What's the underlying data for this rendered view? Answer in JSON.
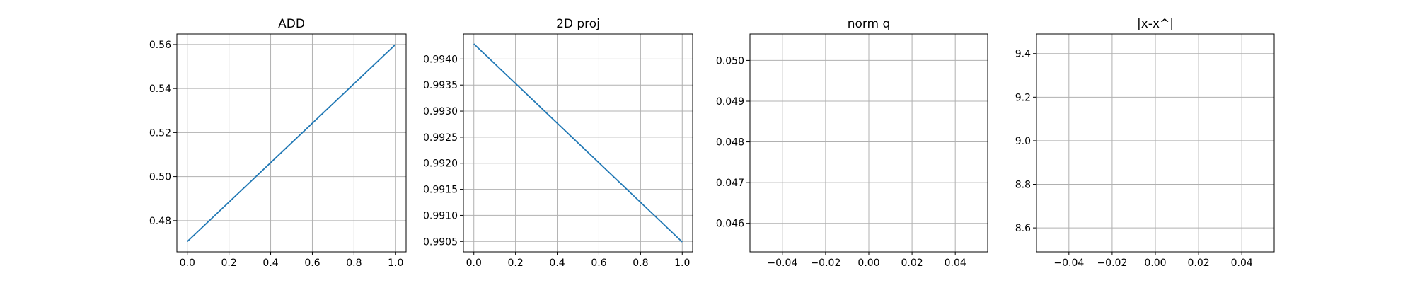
{
  "chart_data": [
    {
      "type": "line",
      "title": "ADD",
      "xlabel": "",
      "ylabel": "",
      "x": [
        0.0,
        1.0
      ],
      "series": [
        {
          "values": [
            0.4705,
            0.5601
          ]
        }
      ],
      "xlim": [
        -0.05,
        1.05
      ],
      "ylim": [
        0.4658,
        0.5648
      ],
      "xticks": [
        0.0,
        0.2,
        0.4,
        0.6,
        0.8,
        1.0
      ],
      "xtick_labels": [
        "0.0",
        "0.2",
        "0.4",
        "0.6",
        "0.8",
        "1.0"
      ],
      "yticks": [
        0.48,
        0.5,
        0.52,
        0.54,
        0.56
      ],
      "ytick_labels": [
        "0.48",
        "0.50",
        "0.52",
        "0.54",
        "0.56"
      ],
      "grid": true,
      "line_color": "#1f77b4"
    },
    {
      "type": "line",
      "title": "2D proj",
      "xlabel": "",
      "ylabel": "",
      "x": [
        0.0,
        1.0
      ],
      "series": [
        {
          "values": [
            0.99429,
            0.99049
          ]
        }
      ],
      "xlim": [
        -0.05,
        1.05
      ],
      "ylim": [
        0.9903,
        0.99448
      ],
      "xticks": [
        0.0,
        0.2,
        0.4,
        0.6,
        0.8,
        1.0
      ],
      "xtick_labels": [
        "0.0",
        "0.2",
        "0.4",
        "0.6",
        "0.8",
        "1.0"
      ],
      "yticks": [
        0.9905,
        0.991,
        0.9915,
        0.992,
        0.9925,
        0.993,
        0.9935,
        0.994
      ],
      "ytick_labels": [
        "0.9905",
        "0.9910",
        "0.9915",
        "0.9920",
        "0.9925",
        "0.9930",
        "0.9935",
        "0.9940"
      ],
      "grid": true,
      "line_color": "#1f77b4"
    },
    {
      "type": "line",
      "title": "norm q",
      "xlabel": "",
      "ylabel": "",
      "x": [],
      "series": [
        {
          "values": []
        }
      ],
      "xlim": [
        -0.055,
        0.055
      ],
      "ylim": [
        0.0453,
        0.05065
      ],
      "xticks": [
        -0.04,
        -0.02,
        0.0,
        0.02,
        0.04
      ],
      "xtick_labels": [
        "−0.04",
        "−0.02",
        "0.00",
        "0.02",
        "0.04"
      ],
      "yticks": [
        0.046,
        0.047,
        0.048,
        0.049,
        0.05
      ],
      "ytick_labels": [
        "0.046",
        "0.047",
        "0.048",
        "0.049",
        "0.050"
      ],
      "grid": true,
      "line_color": "#1f77b4"
    },
    {
      "type": "line",
      "title": "|x-x^|",
      "xlabel": "",
      "ylabel": "",
      "x": [],
      "series": [
        {
          "values": []
        }
      ],
      "xlim": [
        -0.055,
        0.055
      ],
      "ylim": [
        8.49,
        9.49
      ],
      "xticks": [
        -0.04,
        -0.02,
        0.0,
        0.02,
        0.04
      ],
      "xtick_labels": [
        "−0.04",
        "−0.02",
        "0.00",
        "0.02",
        "0.04"
      ],
      "yticks": [
        8.6,
        8.8,
        9.0,
        9.2,
        9.4
      ],
      "ytick_labels": [
        "8.6",
        "8.8",
        "9.0",
        "9.2",
        "9.4"
      ],
      "grid": true,
      "line_color": "#1f77b4"
    }
  ]
}
